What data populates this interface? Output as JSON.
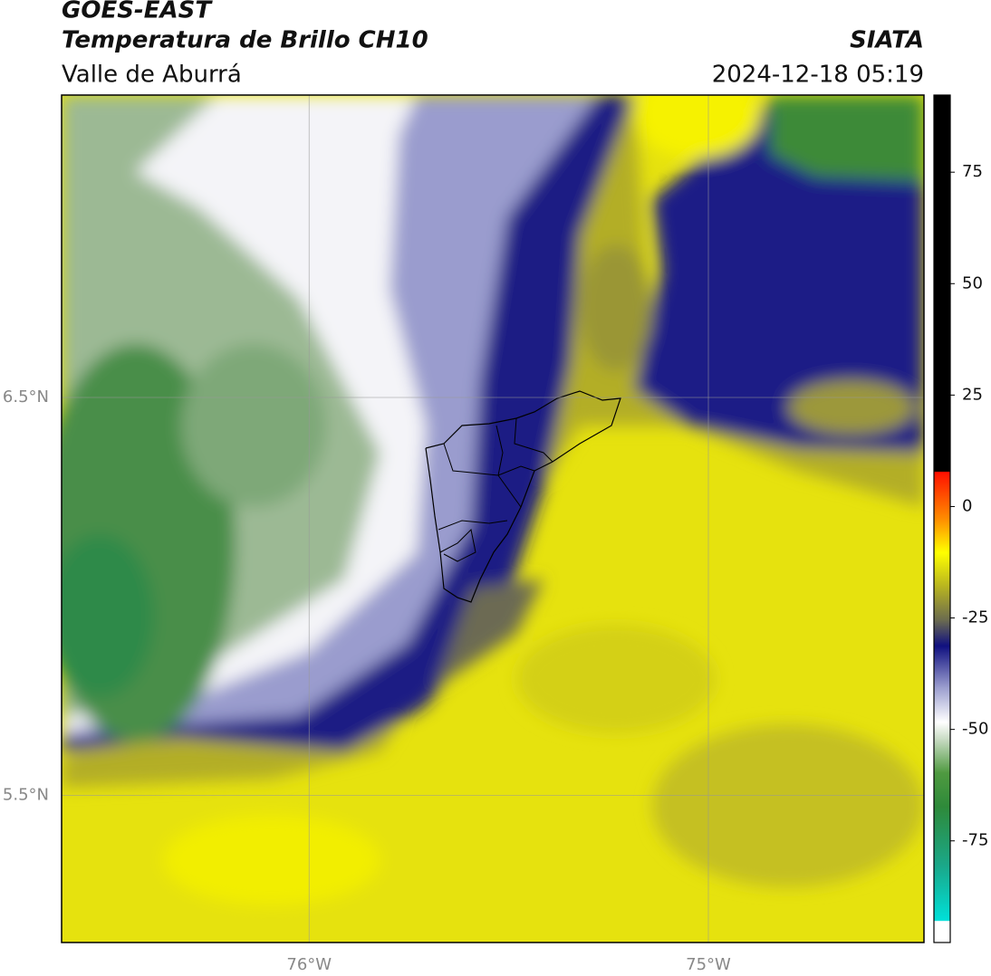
{
  "chart_data": {
    "type": "map",
    "title": "GOES-EAST",
    "subtitle": "Temperatura de Brillo CH10",
    "region": "Valle de Aburrá",
    "source": "SIATA",
    "timestamp": "2024-12-18 05:19",
    "xlim": [
      -76.62,
      -74.46
    ],
    "ylim": [
      5.13,
      7.26
    ],
    "xticks": [
      {
        "value": -76,
        "label": "76°W"
      },
      {
        "value": -75,
        "label": "75°W"
      }
    ],
    "yticks": [
      {
        "value": 5.5,
        "label": "5.5°N"
      },
      {
        "value": 6.5,
        "label": "6.5°N"
      }
    ],
    "grid": true,
    "colorbar": {
      "ylim": [
        -97.8,
        92.3
      ],
      "yticks": [
        -75,
        -50,
        -25,
        0,
        25,
        50,
        75
      ]
    }
  }
}
